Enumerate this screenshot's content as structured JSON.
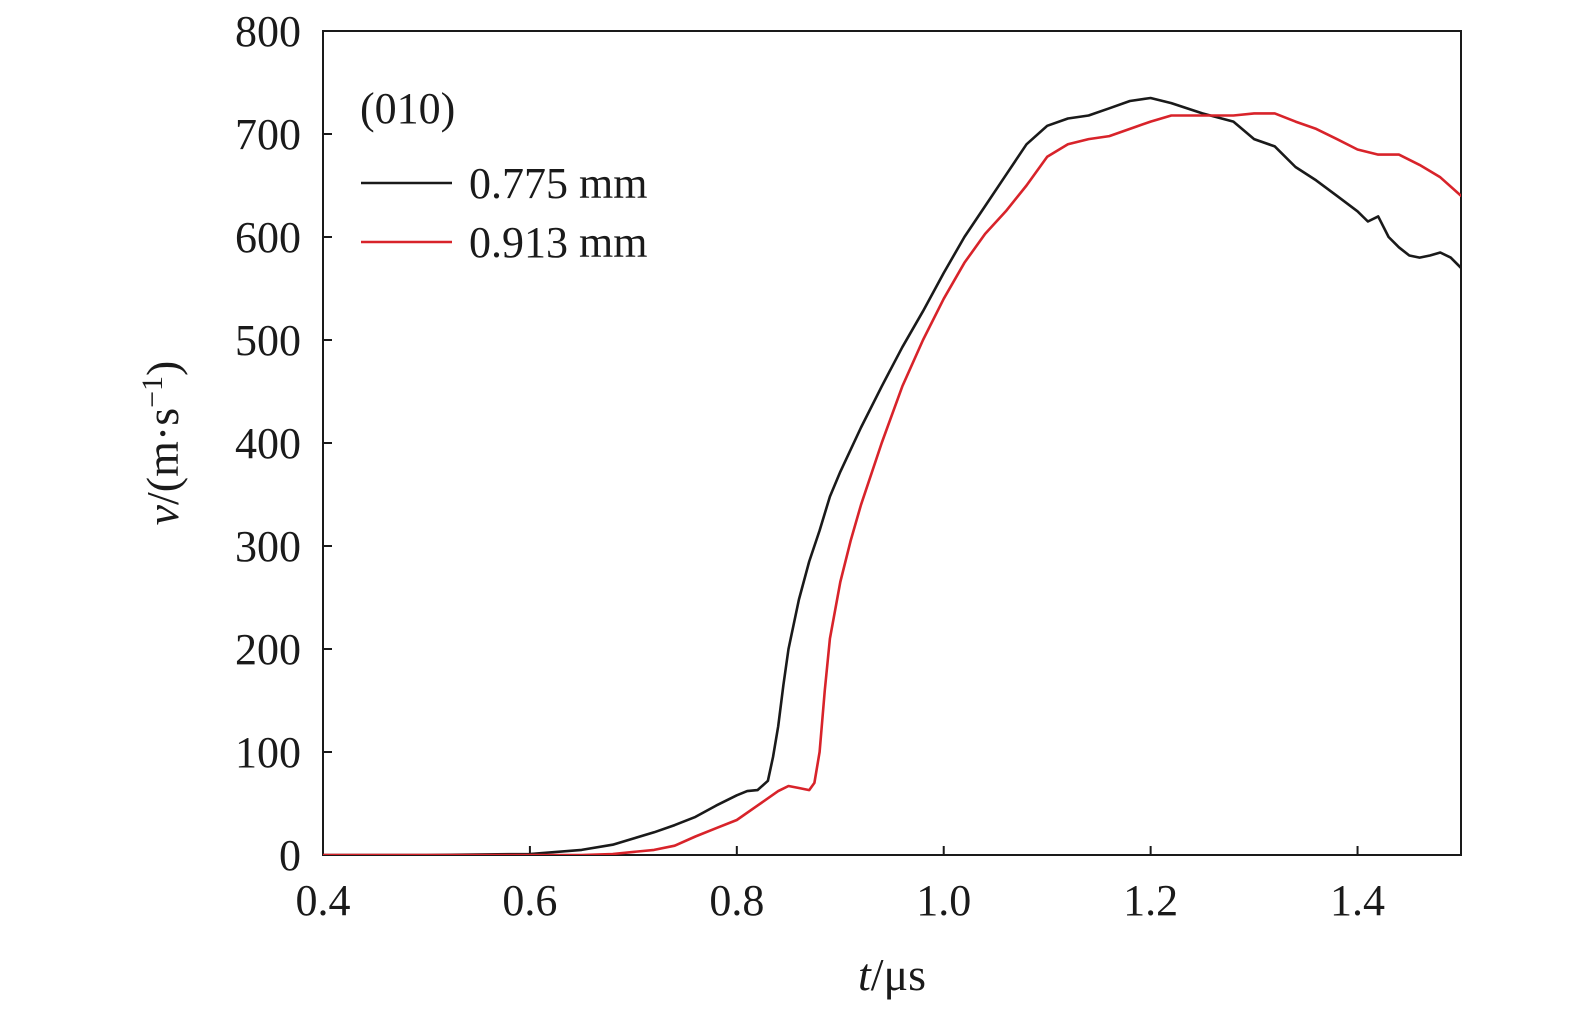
{
  "chart_data": {
    "type": "line",
    "annotation": "(010)",
    "xlabel": {
      "var": "t",
      "unit": "/μs"
    },
    "ylabel": {
      "var": "v",
      "unit": "/(m·s",
      "sup": "−1",
      "close": ")"
    },
    "xlim": [
      0.4,
      1.5
    ],
    "ylim": [
      0,
      800
    ],
    "xticks": [
      0.4,
      0.6,
      0.8,
      1.0,
      1.2,
      1.4
    ],
    "xtick_labels": [
      "0.4",
      "0.6",
      "0.8",
      "1.0",
      "1.2",
      "1.4"
    ],
    "yticks": [
      0,
      100,
      200,
      300,
      400,
      500,
      600,
      700,
      800
    ],
    "ytick_labels": [
      "0",
      "100",
      "200",
      "300",
      "400",
      "500",
      "600",
      "700",
      "800"
    ],
    "grid": false,
    "legend_position": "top-left",
    "series": [
      {
        "name": "0.775 mm",
        "color": "#1a1a1a",
        "x": [
          0.4,
          0.5,
          0.6,
          0.65,
          0.68,
          0.7,
          0.72,
          0.74,
          0.76,
          0.78,
          0.8,
          0.81,
          0.82,
          0.83,
          0.835,
          0.84,
          0.845,
          0.85,
          0.86,
          0.87,
          0.88,
          0.89,
          0.9,
          0.92,
          0.94,
          0.96,
          0.98,
          1.0,
          1.02,
          1.04,
          1.06,
          1.08,
          1.1,
          1.12,
          1.14,
          1.16,
          1.18,
          1.2,
          1.22,
          1.25,
          1.28,
          1.3,
          1.32,
          1.34,
          1.36,
          1.38,
          1.4,
          1.41,
          1.42,
          1.43,
          1.44,
          1.45,
          1.46,
          1.47,
          1.48,
          1.49,
          1.5
        ],
        "y": [
          0,
          0,
          1,
          5,
          10,
          16,
          22,
          29,
          37,
          48,
          58,
          62,
          63,
          72,
          95,
          125,
          165,
          200,
          248,
          285,
          315,
          348,
          372,
          415,
          455,
          493,
          528,
          565,
          600,
          630,
          660,
          690,
          708,
          715,
          718,
          725,
          732,
          735,
          730,
          720,
          712,
          695,
          688,
          668,
          655,
          640,
          625,
          615,
          620,
          600,
          590,
          582,
          580,
          582,
          585,
          580,
          570
        ]
      },
      {
        "name": "0.913 mm",
        "color": "#d8232a",
        "x": [
          0.4,
          0.5,
          0.6,
          0.65,
          0.68,
          0.7,
          0.72,
          0.74,
          0.76,
          0.78,
          0.8,
          0.82,
          0.84,
          0.85,
          0.86,
          0.87,
          0.875,
          0.88,
          0.885,
          0.89,
          0.9,
          0.91,
          0.92,
          0.94,
          0.96,
          0.98,
          1.0,
          1.02,
          1.04,
          1.06,
          1.08,
          1.1,
          1.12,
          1.14,
          1.16,
          1.18,
          1.2,
          1.22,
          1.25,
          1.28,
          1.3,
          1.32,
          1.34,
          1.36,
          1.38,
          1.4,
          1.42,
          1.44,
          1.46,
          1.48,
          1.5
        ],
        "y": [
          0,
          0,
          0,
          0,
          1,
          3,
          5,
          9,
          18,
          26,
          34,
          48,
          62,
          67,
          65,
          63,
          70,
          100,
          160,
          210,
          265,
          305,
          340,
          400,
          455,
          500,
          540,
          575,
          603,
          625,
          650,
          678,
          690,
          695,
          698,
          705,
          712,
          718,
          718,
          718,
          720,
          720,
          712,
          705,
          695,
          685,
          680,
          680,
          670,
          658,
          640
        ]
      }
    ]
  }
}
